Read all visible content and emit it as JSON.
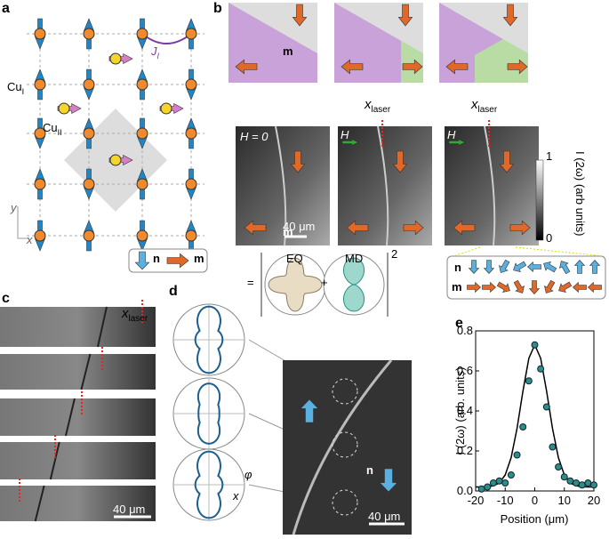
{
  "panel_labels": [
    "a",
    "b",
    "c",
    "d",
    "e"
  ],
  "a": {
    "cu1": "Cu",
    "cu1_sub": "I",
    "cu2": "Cu",
    "cu2_sub": "II",
    "j": "J",
    "j_sub": "I",
    "y_axis": "y",
    "x_axis": "x",
    "legend_n": "n",
    "legend_m": "m"
  },
  "b": {
    "m_label": "m",
    "x": "x",
    "x_sub": "laser",
    "h0": "H = 0",
    "h": "H",
    "scale": "40 μm",
    "colorbar_label": "I (2ω) (arb units)",
    "colorbar_max": "1",
    "colorbar_min": "0",
    "n_row": "n",
    "m_row": "m"
  },
  "c": {
    "x": "x",
    "x_sub": "laser",
    "scale": "40 μm"
  },
  "d": {
    "eq": "EQ",
    "md": "MD",
    "equals": "=",
    "plus": "+",
    "power": "2",
    "phi": "φ",
    "x": "x",
    "n": "n",
    "scale": "40 μm"
  },
  "chart_data": {
    "type": "scatter",
    "y_label": "I (2ω) (arb. units)",
    "x_label": "Position (μm)",
    "xlim": [
      -20,
      20
    ],
    "ylim": [
      0,
      0.8
    ],
    "xticks": [
      -20,
      -10,
      0,
      10,
      20
    ],
    "yticks": [
      {
        "value": 0,
        "label": "0.0"
      },
      0.2,
      0.4,
      0.6,
      0.8
    ],
    "series": [
      {
        "color": "#2a8f86",
        "x": [
          -18,
          -16,
          -14,
          -12,
          -10,
          -8,
          -6,
          -4,
          -2,
          0,
          2,
          4,
          6,
          8,
          10,
          12,
          14,
          16,
          18,
          20
        ],
        "values": [
          0.01,
          0.02,
          0.04,
          0.05,
          0.04,
          0.08,
          0.18,
          0.32,
          0.55,
          0.73,
          0.61,
          0.42,
          0.22,
          0.12,
          0.07,
          0.05,
          0.04,
          0.03,
          0.04,
          0.03
        ]
      },
      {
        "color": "#000000",
        "x": [
          -20,
          -18,
          -16,
          -14,
          -12,
          -10,
          -8,
          -6,
          -4,
          -2,
          0,
          2,
          4,
          6,
          8,
          10,
          12,
          14,
          16,
          18,
          20
        ],
        "values": [
          0.02,
          0.02,
          0.021,
          0.026,
          0.04,
          0.08,
          0.166,
          0.312,
          0.499,
          0.663,
          0.73,
          0.663,
          0.499,
          0.312,
          0.166,
          0.08,
          0.04,
          0.026,
          0.021,
          0.02,
          0.02
        ]
      }
    ]
  }
}
